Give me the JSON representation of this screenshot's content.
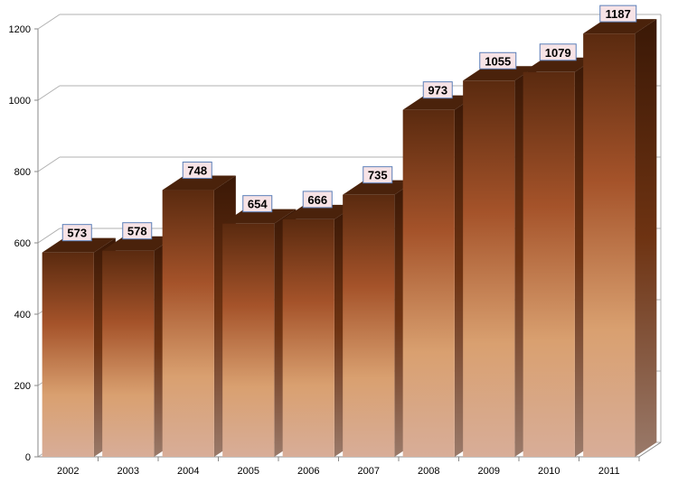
{
  "chart_data": {
    "type": "bar",
    "categories": [
      "2002",
      "2003",
      "2004",
      "2005",
      "2006",
      "2007",
      "2008",
      "2009",
      "2010",
      "2011"
    ],
    "values": [
      573,
      578,
      748,
      654,
      666,
      735,
      973,
      1055,
      1079,
      1187
    ],
    "ylim": [
      0,
      1200
    ],
    "yticks": [
      "0",
      "200",
      "400",
      "600",
      "800",
      "1000",
      "1200"
    ],
    "grid": true,
    "style": "3d-bar",
    "colors": {
      "bar_top": "#5a2a0f",
      "bar_mid": "#a5532a",
      "bar_low": "#d9a070",
      "bar_bottom": "#d8ad98",
      "label_fill": "#f7e3e6",
      "label_border": "#5b7fb8",
      "grid": "#b0b0b0"
    }
  }
}
